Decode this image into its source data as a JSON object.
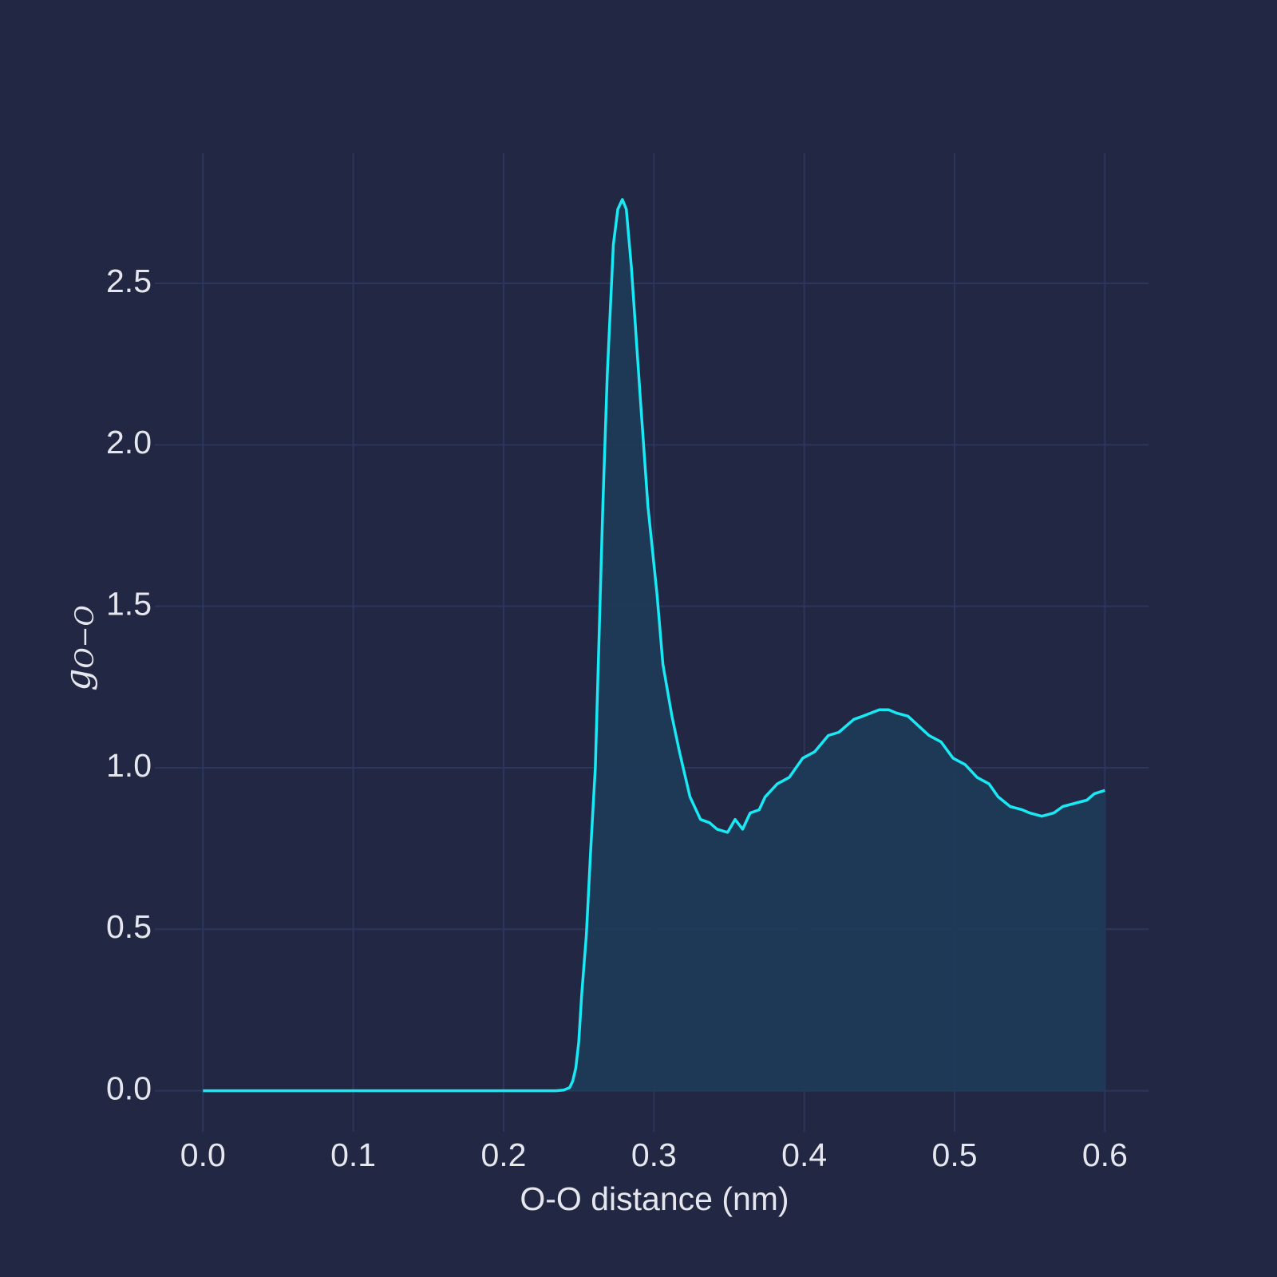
{
  "chart_data": {
    "type": "area",
    "x_label": "O-O distance (nm)",
    "y_label": {
      "main": "g",
      "sub": "O−O"
    },
    "color": "#19e8f5",
    "fill_color": "#1e3b58",
    "grid": true,
    "x": [
      0,
      0.05,
      0.1,
      0.15,
      0.2,
      0.235,
      0.24,
      0.244,
      0.246,
      0.248,
      0.25,
      0.252,
      0.255,
      0.258,
      0.261,
      0.266,
      0.269,
      0.273,
      0.276,
      0.279,
      0.2816,
      0.285,
      0.291,
      0.296,
      0.302,
      0.306,
      0.312,
      0.317,
      0.324,
      0.331,
      0.337,
      0.342,
      0.349,
      0.354,
      0.359,
      0.364,
      0.37,
      0.374,
      0.382,
      0.39,
      0.399,
      0.407,
      0.416,
      0.423,
      0.433,
      0.439,
      0.45,
      0.456,
      0.461,
      0.469,
      0.476,
      0.483,
      0.491,
      0.499,
      0.507,
      0.515,
      0.523,
      0.529,
      0.537,
      0.545,
      0.55,
      0.558,
      0.566,
      0.572,
      0.58,
      0.588,
      0.593,
      0.6
    ],
    "values": [
      0,
      0,
      0,
      0,
      0,
      0,
      0.002,
      0.01,
      0.03,
      0.07,
      0.15,
      0.3,
      0.48,
      0.75,
      1.0,
      1.81,
      2.22,
      2.62,
      2.73,
      2.76,
      2.73,
      2.55,
      2.14,
      1.81,
      1.54,
      1.32,
      1.16,
      1.05,
      0.91,
      0.84,
      0.83,
      0.81,
      0.8,
      0.84,
      0.81,
      0.86,
      0.87,
      0.91,
      0.95,
      0.97,
      1.03,
      1.05,
      1.1,
      1.11,
      1.15,
      1.16,
      1.18,
      1.18,
      1.17,
      1.16,
      1.13,
      1.1,
      1.08,
      1.03,
      1.01,
      0.97,
      0.95,
      0.91,
      0.88,
      0.87,
      0.86,
      0.85,
      0.86,
      0.88,
      0.89,
      0.9,
      0.92,
      0.93
    ],
    "xlim": [
      -0.032,
      0.629
    ],
    "ylim": [
      -0.127,
      2.903
    ],
    "xticks": [
      {
        "value": 0,
        "label": "0.0"
      },
      0.1,
      0.2,
      0.3,
      0.4,
      0.5,
      0.6
    ],
    "yticks": [
      {
        "value": 0,
        "label": "0.0"
      },
      0.5,
      {
        "value": 1,
        "label": "1.0"
      },
      1.5,
      {
        "value": 2,
        "label": "2.0"
      },
      2.5
    ]
  }
}
